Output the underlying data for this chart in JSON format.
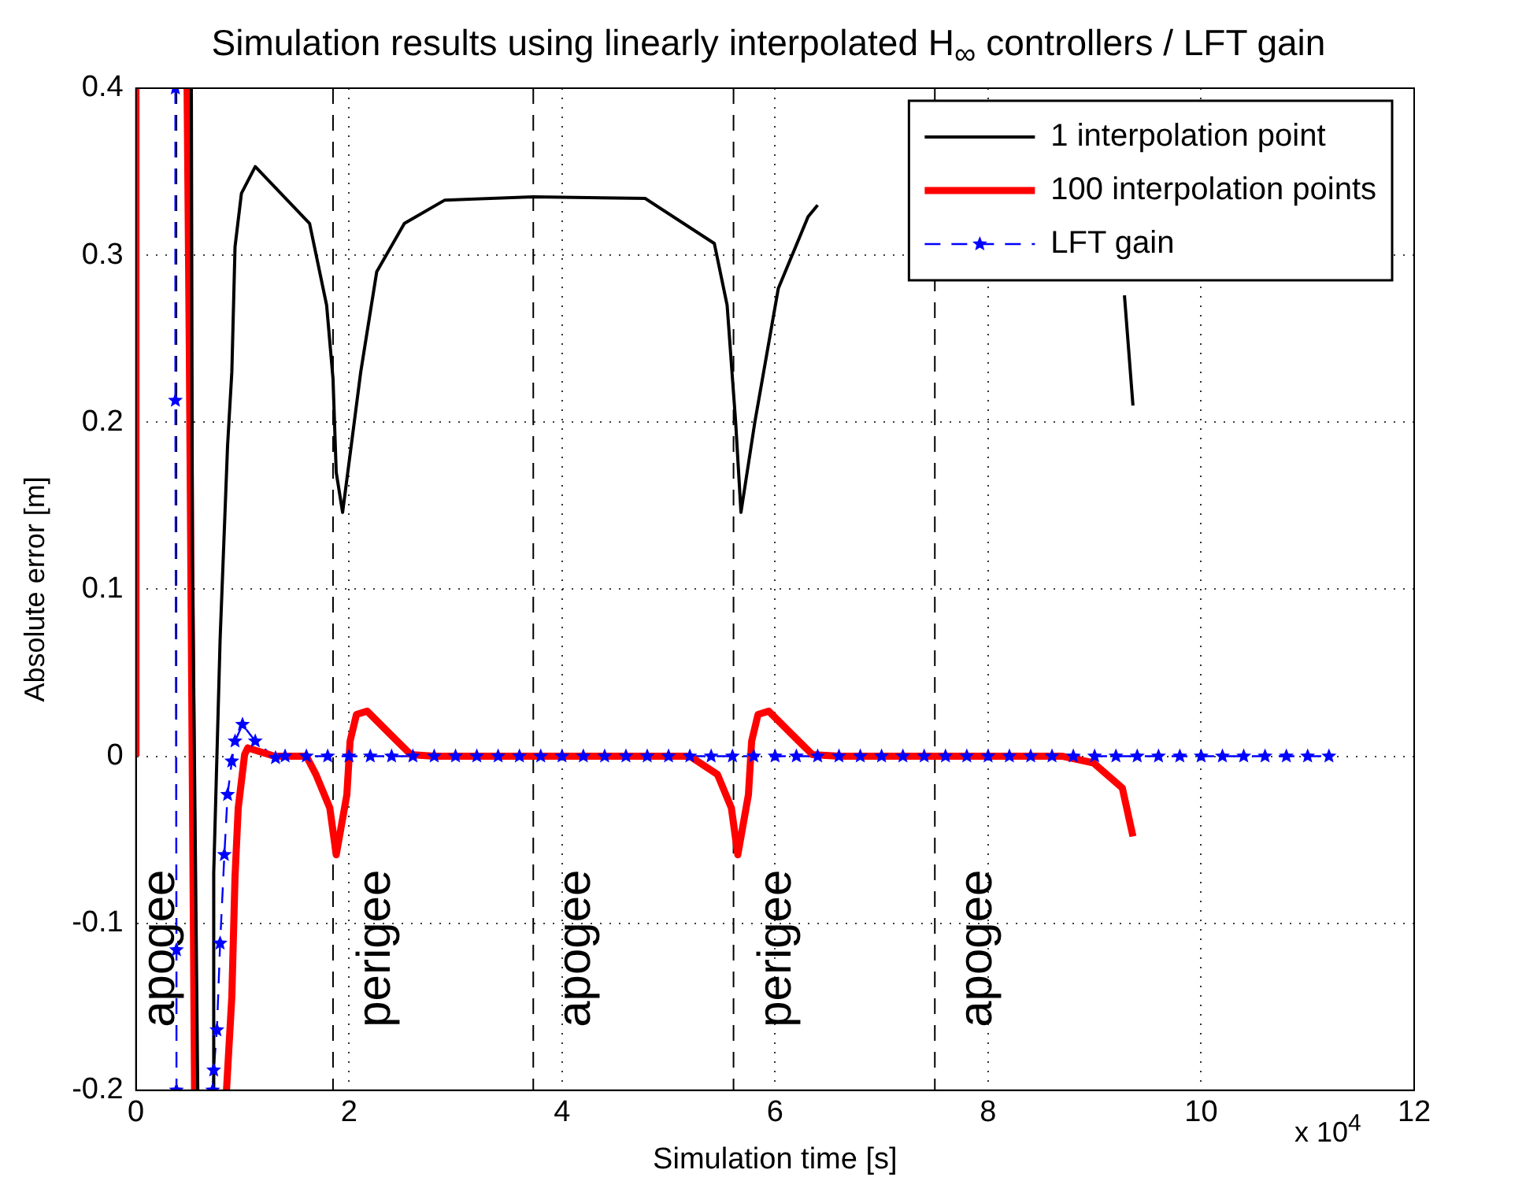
{
  "chart_data": {
    "type": "line",
    "title": "Simulation results using linearly interpolated H$_{∞}$ controllers / LFT gain",
    "xlabel": "Simulation time [s]",
    "ylabel": "Absolute error [m]",
    "annotations": [
      "x 10$^{4}$"
    ],
    "xlim": [
      0,
      12
    ],
    "xticks": [
      0,
      2,
      4,
      6,
      8,
      10,
      12
    ],
    "ylim": [
      -0.2,
      0.4
    ],
    "yticks": [
      -0.2,
      -0.1,
      0,
      0.1,
      0.2,
      0.3,
      0.4
    ],
    "grid": true,
    "legend": "top right",
    "ref_lines": [
      {
        "axis": "x",
        "value": 0.38,
        "label": "apogee",
        "line_style": "dashed",
        "color": "#000000"
      },
      {
        "axis": "x",
        "value": 1.85,
        "label": "perigee",
        "line_style": "dashed",
        "color": "#000000"
      },
      {
        "axis": "x",
        "value": 3.73,
        "label": "apogee",
        "line_style": "dashed",
        "color": "#000000"
      },
      {
        "axis": "x",
        "value": 5.61,
        "label": "perigee",
        "line_style": "dashed",
        "color": "#000000"
      },
      {
        "axis": "x",
        "value": 7.5,
        "label": "apogee",
        "line_style": "dashed",
        "color": "#000000"
      }
    ],
    "series": [
      {
        "name": "1 interpolation point",
        "color": "#000000",
        "line_style": "solid",
        "marker": "none",
        "x": [
          0.52,
          0.53,
          0.58,
          0.65,
          0.72,
          0.73,
          0.79,
          0.86,
          0.9,
          0.93,
          0.99,
          1.12,
          1.63,
          1.79,
          1.85,
          1.88,
          1.94,
          2.11,
          2.26,
          2.52,
          2.9,
          3.73,
          4.78,
          5.43,
          5.55,
          5.63,
          5.68,
          5.81,
          6.03,
          6.31,
          6.4,
          6.5,
          9.28,
          9.36
        ],
        "values": [
          0.4,
          0.12,
          -0.2,
          null,
          -0.2,
          -0.07,
          0.07,
          0.186,
          0.23,
          0.305,
          0.337,
          0.353,
          0.319,
          0.27,
          0.226,
          0.17,
          0.146,
          0.23,
          0.29,
          0.319,
          0.333,
          0.335,
          0.334,
          0.307,
          0.27,
          0.2,
          0.146,
          0.2,
          0.28,
          0.323,
          0.33,
          null,
          0.276,
          0.21
        ]
      },
      {
        "name": "100 interpolation points",
        "color": "#ff0000",
        "line_style": "solid",
        "marker": "none",
        "x": [
          0,
          0,
          0.4,
          0.48,
          0.5,
          0.55,
          0.7,
          0.85,
          0.9,
          0.93,
          0.96,
          1.02,
          1.05,
          1.3,
          1.6,
          1.69,
          1.82,
          1.88,
          1.98,
          2.01,
          2.07,
          2.17,
          2.39,
          2.58,
          2.8,
          5.2,
          5.46,
          5.59,
          5.65,
          5.75,
          5.78,
          5.84,
          5.94,
          6.16,
          6.35,
          6.6,
          8.7,
          8.99,
          9.26,
          9.36
        ],
        "values": [
          0,
          0.4,
          null,
          0.4,
          0.25,
          -0.2,
          null,
          -0.2,
          -0.144,
          -0.072,
          -0.031,
          0.001,
          0.005,
          0,
          0,
          -0.011,
          -0.031,
          -0.059,
          -0.023,
          0.009,
          0.025,
          0.027,
          0.013,
          0.001,
          0,
          0,
          -0.011,
          -0.031,
          -0.059,
          -0.023,
          0.009,
          0.025,
          0.027,
          0.013,
          0.001,
          0,
          0,
          -0.004,
          -0.019,
          -0.048
        ]
      },
      {
        "name": "LFT gain",
        "color": "#0000ff",
        "line_style": "dashed",
        "marker": "star",
        "x": [
          0.37,
          0.37,
          0.38,
          0.38,
          0.5,
          0.72,
          0.73,
          0.76,
          0.79,
          0.83,
          0.86,
          0.9,
          0.93,
          1,
          1.12,
          1.31,
          1.4,
          1.6,
          1.8,
          2,
          2.2,
          2.4,
          2.6,
          2.8,
          3,
          3.2,
          3.4,
          3.6,
          3.8,
          4,
          4.2,
          4.4,
          4.6,
          4.8,
          5,
          5.2,
          5.4,
          5.6,
          5.8,
          6,
          6.2,
          6.4,
          6.6,
          6.8,
          7,
          7.2,
          7.4,
          7.6,
          7.8,
          8,
          8.2,
          8.4,
          8.6,
          8.8,
          9,
          9.2,
          9.4,
          9.6,
          9.8,
          10,
          10.2,
          10.4,
          10.6,
          10.8,
          11,
          11.2
        ],
        "values": [
          0.4,
          0.213,
          -0.116,
          -0.2,
          null,
          -0.2,
          -0.188,
          -0.164,
          -0.112,
          -0.059,
          -0.023,
          -0.003,
          0.009,
          0.019,
          0.009,
          -0.001,
          0,
          0,
          0,
          0,
          0,
          0,
          0,
          0,
          0,
          0,
          0,
          0,
          0,
          0,
          0,
          0,
          0,
          0,
          0,
          0,
          0,
          0,
          0,
          0,
          0,
          0,
          0,
          0,
          0,
          0,
          0,
          0,
          0,
          0,
          0,
          0,
          0,
          0,
          0,
          0,
          0,
          0,
          0,
          0,
          0,
          0,
          0,
          0,
          0,
          0
        ]
      }
    ]
  }
}
